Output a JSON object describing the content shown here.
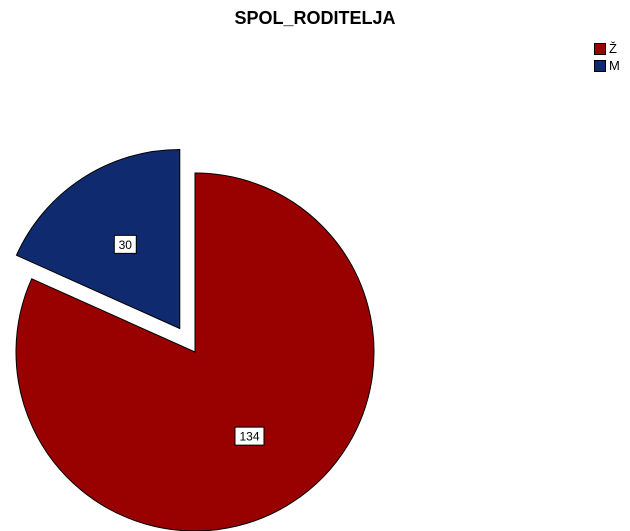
{
  "chart_data": {
    "type": "pie",
    "title": "SPOL_RODITELJA",
    "slices": [
      {
        "label": "Ž",
        "value": 134,
        "color": "#990000"
      },
      {
        "label": "M",
        "value": 30,
        "color": "#0f2a6e"
      }
    ],
    "exploded": [
      "M"
    ],
    "legend_position": "top-right"
  }
}
